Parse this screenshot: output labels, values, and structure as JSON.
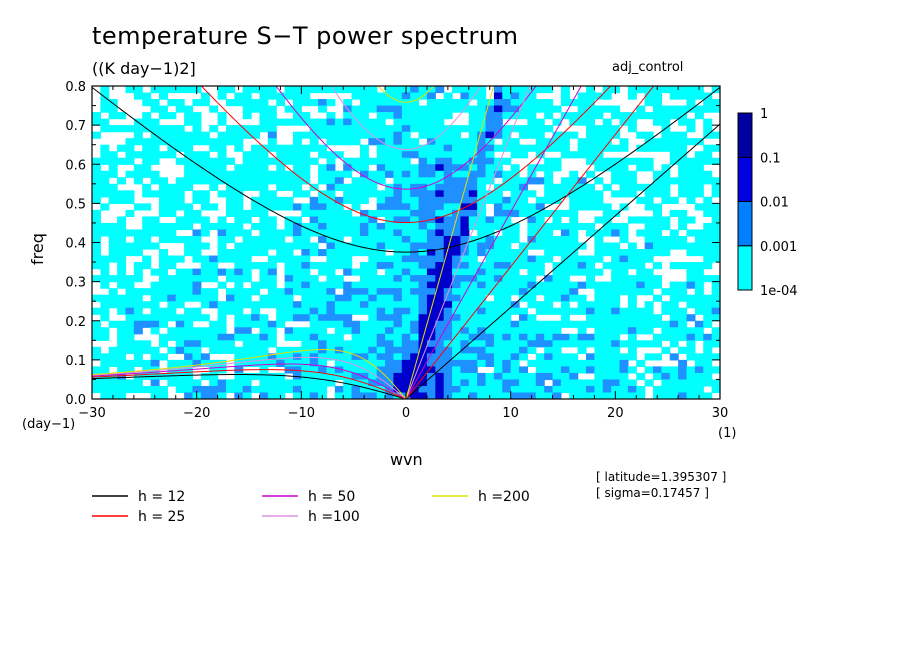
{
  "chart_data": {
    "type": "heatmap",
    "title": "temperature S−T power spectrum",
    "subtitle": "((K day−1)2]",
    "experiment": "adj_control",
    "xlabel": "wvn",
    "ylabel": "freq",
    "x_unit": "(1)",
    "y_unit": "(day−1)",
    "xlim": [
      -30,
      30
    ],
    "ylim": [
      0,
      0.8
    ],
    "x_ticks": [
      -30,
      -20,
      -10,
      0,
      10,
      20,
      30
    ],
    "x_tick_labels": [
      "−30",
      "−20",
      "−10",
      "0",
      "10",
      "20",
      "30"
    ],
    "y_ticks": [
      0,
      0.1,
      0.2,
      0.3,
      0.4,
      0.5,
      0.6,
      0.7,
      0.8
    ],
    "y_tick_labels": [
      "0.0",
      "0.1",
      "0.2",
      "0.3",
      "0.4",
      "0.5",
      "0.6",
      "0.7",
      "0.8"
    ],
    "colorbar": {
      "levels": [
        "1e-04",
        "0.001",
        "0.01",
        "0.1",
        "1"
      ],
      "colors": [
        "#00ffff",
        "#0080ff",
        "#0000e0",
        "#0000a0",
        "#4000c0"
      ]
    },
    "contour_fill": {
      "light_color": "#00ffff",
      "mid_color": "#1e90ff",
      "dark_color": "#0000cd"
    },
    "dispersion_curves": [
      {
        "name": "h = 12",
        "h": 12,
        "color": "#000000"
      },
      {
        "name": "h = 25",
        "h": 25,
        "color": "#ff0000"
      },
      {
        "name": "h = 50",
        "h": 50,
        "color": "#d000d0"
      },
      {
        "name": "h =100",
        "h": 100,
        "color": "#e090e0"
      },
      {
        "name": "h =200",
        "h": 200,
        "color": "#e0e000"
      }
    ],
    "annotations": [
      "[ latitude=1.395307 ]",
      "[ sigma=0.17457 ]"
    ]
  }
}
